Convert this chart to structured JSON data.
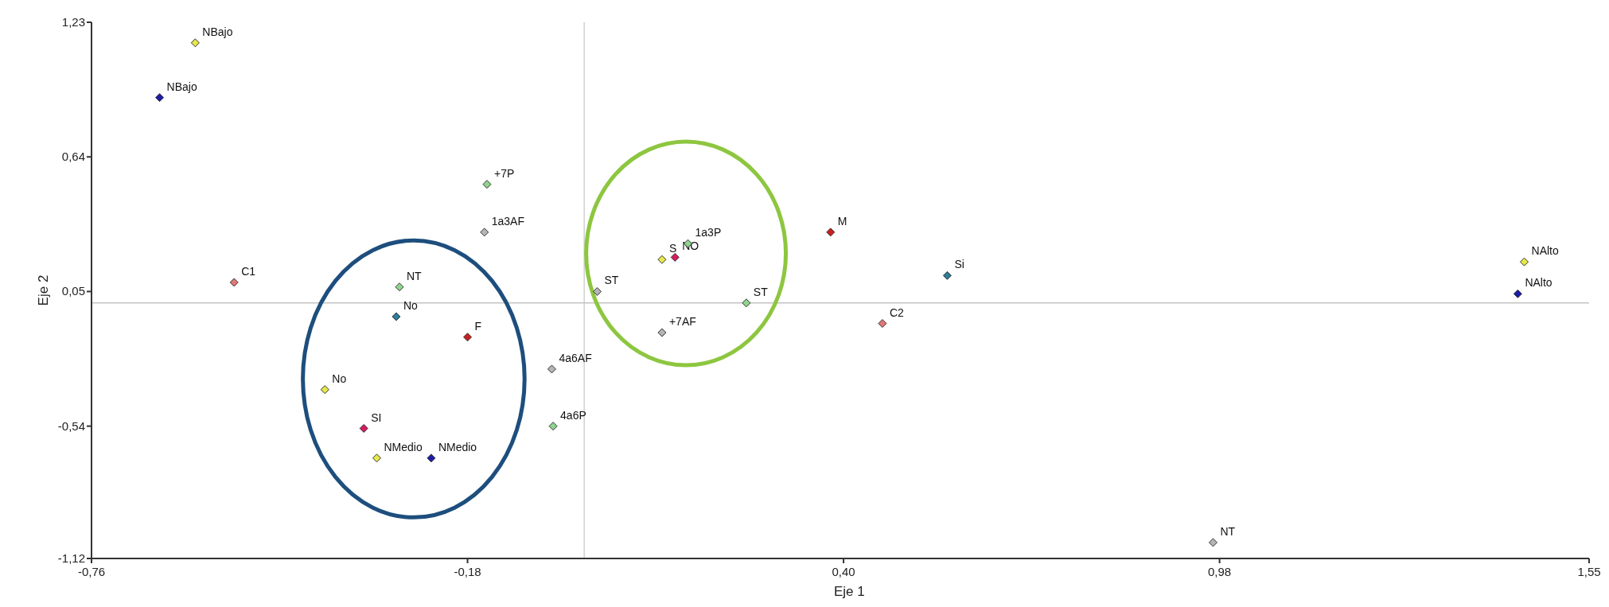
{
  "chart_data": {
    "type": "scatter",
    "xlabel": "Eje 1",
    "ylabel": "Eje 2",
    "marker": "diamond",
    "grid": false,
    "xlim": [
      -0.76,
      1.55
    ],
    "ylim": [
      -1.12,
      1.23
    ],
    "xticks": [
      {
        "value": -0.76,
        "label": "-0,76"
      },
      {
        "value": -0.18,
        "label": "-0,18"
      },
      {
        "value": 0.4,
        "label": "0,40"
      },
      {
        "value": 0.98,
        "label": "0,98"
      },
      {
        "value": 1.55,
        "label": "1,55"
      }
    ],
    "yticks": [
      {
        "value": -1.12,
        "label": "-1,12"
      },
      {
        "value": -0.54,
        "label": "-0,54"
      },
      {
        "value": 0.05,
        "label": "0,05"
      },
      {
        "value": 0.64,
        "label": "0,64"
      },
      {
        "value": 1.23,
        "label": "1,23"
      }
    ],
    "ref_lines": [
      {
        "axis": "x",
        "value": 0,
        "color": "#d0d0d0"
      },
      {
        "axis": "y",
        "value": 0,
        "color": "#c4c4c4"
      }
    ],
    "series": [
      {
        "name": "NBajo",
        "color": "#e8e84a",
        "x": [
          -0.6
        ],
        "values": [
          1.14
        ]
      },
      {
        "name": "NAlto",
        "color": "#e8e84a",
        "x": [
          1.45
        ],
        "values": [
          0.18
        ]
      },
      {
        "name": "NMedio",
        "color": "#e8e84a",
        "x": [
          -0.32
        ],
        "values": [
          -0.68
        ]
      },
      {
        "name": "S",
        "color": "#e8e84a",
        "x": [
          0.12
        ],
        "values": [
          0.19
        ]
      },
      {
        "name": "No",
        "color": "#e8e84a",
        "x": [
          -0.4
        ],
        "values": [
          -0.38
        ]
      },
      {
        "name": "NBajo",
        "color": "#1c1caa",
        "x": [
          -0.655
        ],
        "values": [
          0.9
        ]
      },
      {
        "name": "NAlto",
        "color": "#1c1caa",
        "x": [
          1.44
        ],
        "values": [
          0.04
        ]
      },
      {
        "name": "NMedio",
        "color": "#1c1caa",
        "x": [
          -0.236
        ],
        "values": [
          -0.68
        ]
      },
      {
        "name": "C1",
        "color": "#e07878",
        "x": [
          -0.54
        ],
        "values": [
          0.09
        ]
      },
      {
        "name": "C2",
        "color": "#e07878",
        "x": [
          0.46
        ],
        "values": [
          -0.09
        ]
      },
      {
        "name": "SI",
        "color": "#d81b60",
        "x": [
          -0.34
        ],
        "values": [
          -0.55
        ]
      },
      {
        "name": "NO",
        "color": "#d81b60",
        "x": [
          0.14
        ],
        "values": [
          0.2
        ]
      },
      {
        "name": "M",
        "color": "#cc1f1f",
        "x": [
          0.38
        ],
        "values": [
          0.31
        ]
      },
      {
        "name": "F",
        "color": "#cc1f1f",
        "x": [
          -0.18
        ],
        "values": [
          -0.15
        ]
      },
      {
        "name": "Si",
        "color": "#2e7d9a",
        "x": [
          0.56
        ],
        "values": [
          0.12
        ]
      },
      {
        "name": "No",
        "color": "#2e7d9a",
        "x": [
          -0.29
        ],
        "values": [
          -0.06
        ]
      },
      {
        "name": "1a3AF",
        "color": "#b5b5b5",
        "x": [
          -0.154
        ],
        "values": [
          0.31
        ]
      },
      {
        "name": "ST",
        "color": "#b5b5b5",
        "x": [
          0.02
        ],
        "values": [
          0.05
        ]
      },
      {
        "name": "+7AF",
        "color": "#b5b5b5",
        "x": [
          0.12
        ],
        "values": [
          -0.13
        ]
      },
      {
        "name": "4a6AF",
        "color": "#b5b5b5",
        "x": [
          -0.05
        ],
        "values": [
          -0.29
        ]
      },
      {
        "name": "NT",
        "color": "#b5b5b5",
        "x": [
          0.97
        ],
        "values": [
          -1.05
        ]
      },
      {
        "name": "+7P",
        "color": "#8fd48f",
        "x": [
          -0.15
        ],
        "values": [
          0.52
        ]
      },
      {
        "name": "1a3P",
        "color": "#8fd48f",
        "x": [
          0.16
        ],
        "values": [
          0.26
        ]
      },
      {
        "name": "4a6P",
        "color": "#8fd48f",
        "x": [
          -0.048
        ],
        "values": [
          -0.54
        ]
      },
      {
        "name": "ST",
        "color": "#8fd48f",
        "x": [
          0.25
        ],
        "values": [
          0.0
        ]
      },
      {
        "name": "NT",
        "color": "#8fd48f",
        "x": [
          -0.285
        ],
        "values": [
          0.07
        ]
      }
    ]
  }
}
